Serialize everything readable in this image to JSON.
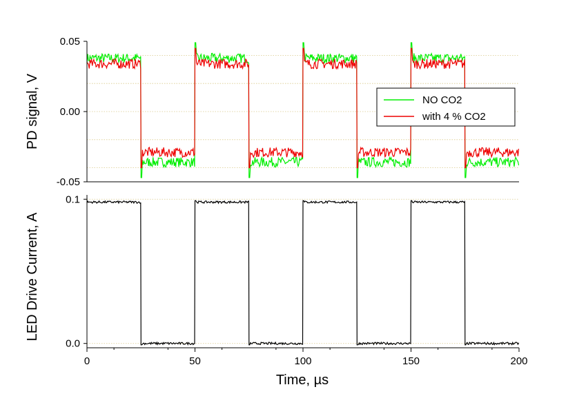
{
  "chart_data": [
    {
      "type": "line",
      "ylabel": "PD signal, V",
      "xlim": [
        0,
        200
      ],
      "ylim": [
        -0.05,
        0.05
      ],
      "yticks": [
        0.05,
        0.0,
        -0.05
      ],
      "ytick_labels": [
        "0.05",
        "0.00",
        "-0.05"
      ],
      "grid": "horizontal dotted",
      "legend_position": "center-right",
      "period_us": 50,
      "duty_on_us": 25,
      "series": [
        {
          "name": "NO CO2",
          "color": "#00ee00",
          "segments": [
            {
              "x_start": 0,
              "x_end": 25,
              "y": 0.038
            },
            {
              "x_start": 25,
              "x_end": 50,
              "y": -0.036
            },
            {
              "x_start": 50,
              "x_end": 75,
              "y": 0.038
            },
            {
              "x_start": 75,
              "x_end": 100,
              "y": -0.036
            },
            {
              "x_start": 100,
              "x_end": 125,
              "y": 0.038
            },
            {
              "x_start": 125,
              "x_end": 150,
              "y": -0.036
            },
            {
              "x_start": 150,
              "x_end": 175,
              "y": 0.038
            },
            {
              "x_start": 175,
              "x_end": 200,
              "y": -0.036
            }
          ]
        },
        {
          "name": "with 4 % CO2",
          "color": "#ee0000",
          "segments": [
            {
              "x_start": 0,
              "x_end": 25,
              "y": 0.034
            },
            {
              "x_start": 25,
              "x_end": 50,
              "y": -0.029
            },
            {
              "x_start": 50,
              "x_end": 75,
              "y": 0.034
            },
            {
              "x_start": 75,
              "x_end": 100,
              "y": -0.029
            },
            {
              "x_start": 100,
              "x_end": 125,
              "y": 0.034
            },
            {
              "x_start": 125,
              "x_end": 150,
              "y": -0.029
            },
            {
              "x_start": 150,
              "x_end": 175,
              "y": 0.034
            },
            {
              "x_start": 175,
              "x_end": 200,
              "y": -0.029
            }
          ]
        }
      ]
    },
    {
      "type": "line",
      "xlabel": "Time, µs",
      "ylabel": "LED Drive Current, A",
      "xlim": [
        0,
        200
      ],
      "ylim": [
        -0.003,
        0.103
      ],
      "xticks": [
        0,
        50,
        100,
        150,
        200
      ],
      "xtick_labels": [
        "0",
        "50",
        "100",
        "150",
        "200"
      ],
      "yticks": [
        0.1,
        0.0
      ],
      "ytick_labels": [
        "0.1",
        "0.0"
      ],
      "grid": "horizontal dotted",
      "series": [
        {
          "color": "#000000",
          "segments": [
            {
              "x_start": 0,
              "x_end": 25,
              "y": 0.098
            },
            {
              "x_start": 25,
              "x_end": 50,
              "y": 0.0
            },
            {
              "x_start": 50,
              "x_end": 75,
              "y": 0.098
            },
            {
              "x_start": 75,
              "x_end": 100,
              "y": 0.0
            },
            {
              "x_start": 100,
              "x_end": 125,
              "y": 0.098
            },
            {
              "x_start": 125,
              "x_end": 150,
              "y": 0.0
            },
            {
              "x_start": 150,
              "x_end": 175,
              "y": 0.098
            },
            {
              "x_start": 175,
              "x_end": 200,
              "y": 0.0
            }
          ]
        }
      ]
    }
  ]
}
